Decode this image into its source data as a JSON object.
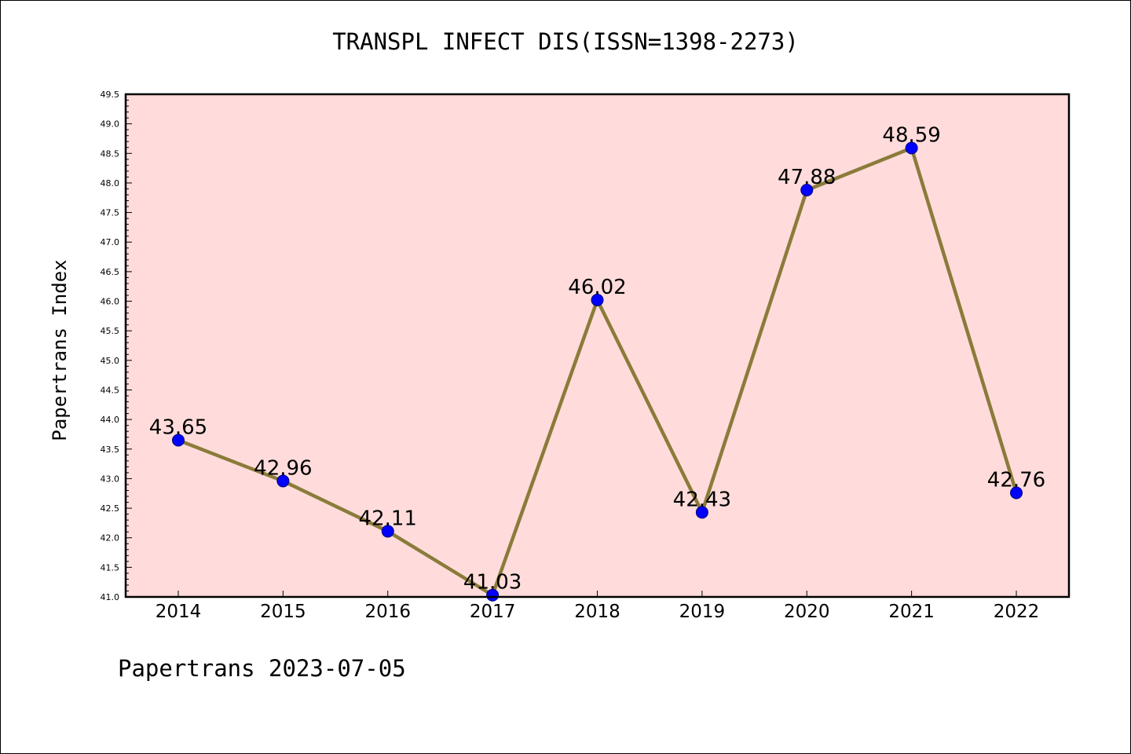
{
  "chart_data": {
    "type": "line",
    "title": "TRANSPL INFECT DIS(ISSN=1398-2273)",
    "ylabel": "Papertrans Index",
    "xlabel": "",
    "footer": "Papertrans 2023-07-05",
    "categories": [
      "2014",
      "2015",
      "2016",
      "2017",
      "2018",
      "2019",
      "2020",
      "2021",
      "2022"
    ],
    "series": [
      {
        "values": [
          43.65,
          42.96,
          42.11,
          41.03,
          46.02,
          42.43,
          47.88,
          48.59,
          42.76
        ],
        "labels": [
          "43.65",
          "42.96",
          "42.11",
          "41.03",
          "46.02",
          "42.43",
          "47.88",
          "48.59",
          "42.76"
        ]
      }
    ],
    "ylim": [
      41.0,
      49.5
    ],
    "yticks": [
      "41.0",
      "41.5",
      "42.0",
      "42.5",
      "43.0",
      "43.5",
      "44.0",
      "44.5",
      "45.0",
      "45.5",
      "46.0",
      "46.5",
      "47.0",
      "47.5",
      "48.0",
      "48.5",
      "49.0",
      "49.5"
    ],
    "grid": false,
    "colors": {
      "plot_background": "#ffdcdb",
      "line": "#8b7b3a",
      "marker": "#0000ff"
    }
  }
}
